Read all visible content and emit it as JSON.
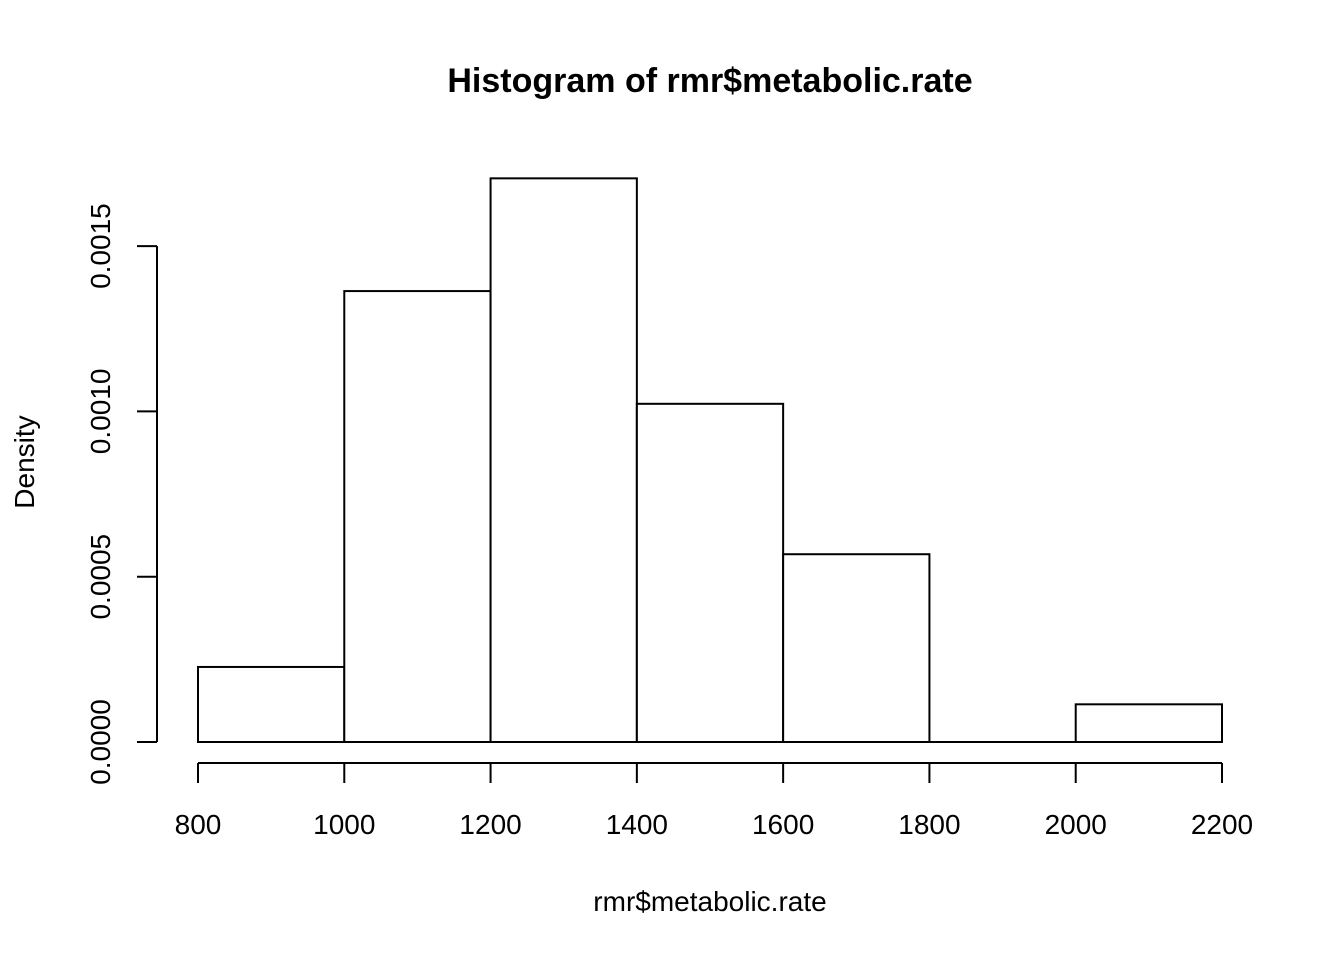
{
  "chart_data": {
    "type": "bar",
    "title": "Histogram of rmr$metabolic.rate",
    "xlabel": "rmr$metabolic.rate",
    "ylabel": "Density",
    "bins": [
      {
        "x0": 800,
        "x1": 1000,
        "density": 0.000227
      },
      {
        "x0": 1000,
        "x1": 1200,
        "density": 0.001364
      },
      {
        "x0": 1200,
        "x1": 1400,
        "density": 0.001705
      },
      {
        "x0": 1400,
        "x1": 1600,
        "density": 0.001023
      },
      {
        "x0": 1600,
        "x1": 1800,
        "density": 0.000568
      },
      {
        "x0": 1800,
        "x1": 2000,
        "density": 0.0
      },
      {
        "x0": 2000,
        "x1": 2200,
        "density": 0.000114
      }
    ],
    "xlim": [
      800,
      2200
    ],
    "ylim": [
      0,
      0.0017
    ],
    "x_ticks": [
      800,
      1000,
      1200,
      1400,
      1600,
      1800,
      2000,
      2200
    ],
    "x_tick_labels": [
      "800",
      "1000",
      "1200",
      "1400",
      "1600",
      "1800",
      "2000",
      "2200"
    ],
    "y_ticks": [
      0,
      0.0005,
      0.001,
      0.0015
    ],
    "y_tick_labels": [
      "0.0000",
      "0.0005",
      "0.0010",
      "0.0015"
    ],
    "grid": false
  }
}
